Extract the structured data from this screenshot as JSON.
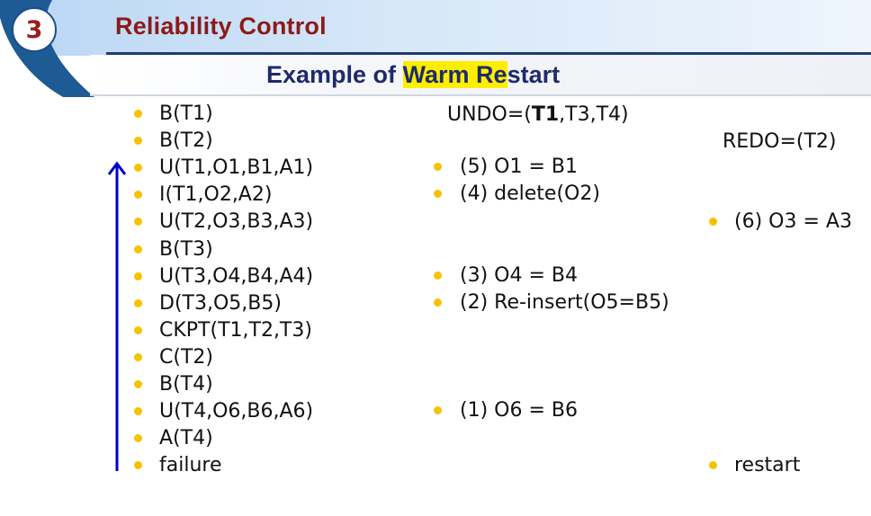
{
  "badge": {
    "number": "3"
  },
  "header": {
    "title": "Reliability Control"
  },
  "subtitle": {
    "prefix": "Example of ",
    "highlight": "Warm Re",
    "suffix": "start"
  },
  "undo": {
    "prefix": "UNDO=(",
    "bold": "T1",
    "suffix": ",T3,T4)"
  },
  "redo": {
    "text": "REDO=(T2)"
  },
  "log": [
    "B(T1)",
    "B(T2)",
    "U(T1,O1,B1,A1)",
    "I(T1,O2,A2)",
    "U(T2,O3,B3,A3)",
    "B(T3)",
    "U(T3,O4,B4,A4)",
    "D(T3,O5,B5)",
    "CKPT(T1,T2,T3)",
    "C(T2)",
    "B(T4)",
    "U(T4,O6,B6,A6)",
    "A(T4)",
    "failure"
  ],
  "undo_actions": {
    "a5": "(5) O1 = B1",
    "a4": "(4) delete(O2)",
    "a3": "(3) O4 = B4",
    "a2": "(2) Re-insert(O5=B5)",
    "a1": "(1) O6 = B6"
  },
  "redo_actions": {
    "a6": "(6) O3 = A3",
    "restart": "restart"
  },
  "colors": {
    "bullet": "#f5c200",
    "arrow": "#0000cc",
    "title": "#8b1a1a",
    "subtitle": "#1f2a6b",
    "highlight": "#ffee00"
  },
  "icons": {
    "arrow": "up-arrow-icon",
    "bullet": "bullet-icon"
  }
}
